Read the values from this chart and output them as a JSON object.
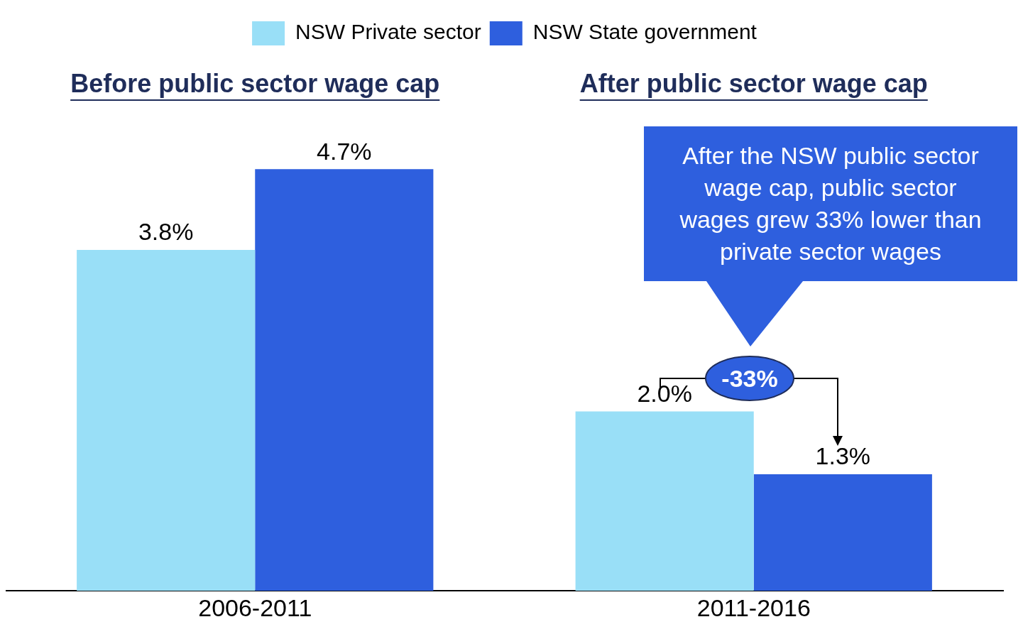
{
  "chart_data": {
    "type": "bar",
    "categories": [
      "2006-2011",
      "2011-2016"
    ],
    "series": [
      {
        "name": "NSW Private sector",
        "color": "#99dff7",
        "values": [
          3.8,
          2.0
        ],
        "value_labels": [
          "3.8%",
          "2.0%"
        ]
      },
      {
        "name": "NSW State government",
        "color": "#2e5fde",
        "values": [
          4.7,
          1.3
        ],
        "value_labels": [
          "4.7%",
          "1.3%"
        ]
      }
    ],
    "legend": "top",
    "grid": false,
    "annotations": [
      "Before public sector wage cap",
      "After public sector wage cap",
      "After the NSW public sector wage cap, public sector wages grew 33% lower than private sector wages",
      "-33%"
    ]
  }
}
